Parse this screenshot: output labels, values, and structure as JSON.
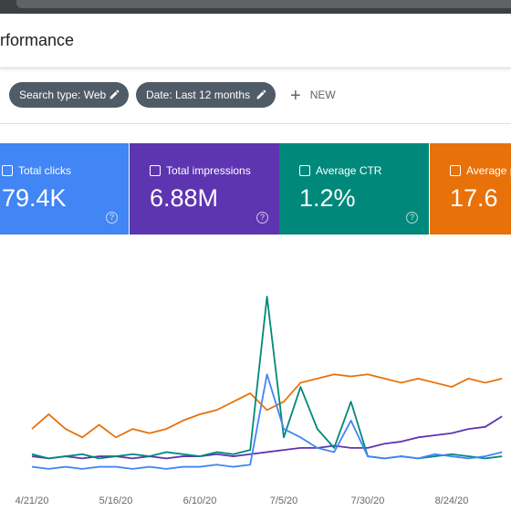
{
  "header": {
    "title": "rformance"
  },
  "filters": [
    "Search type: Web",
    "Date: Last 12 months"
  ],
  "new_button": "NEW",
  "chart_data": {
    "type": "line",
    "categories": [
      "4/21/20",
      null,
      null,
      null,
      null,
      "5/16/20",
      null,
      null,
      null,
      null,
      "6/10/20",
      null,
      null,
      null,
      null,
      "7/5/20",
      null,
      null,
      null,
      null,
      "7/30/20",
      null,
      null,
      null,
      null,
      "8/24/20",
      null,
      null,
      null
    ],
    "series": [
      {
        "name": "Total clicks",
        "total": "79.4K",
        "color": "#4285f4",
        "values": [
          8,
          7,
          8,
          7,
          8,
          8,
          7,
          8,
          7,
          8,
          8,
          9,
          8,
          9,
          52,
          26,
          22,
          17,
          15,
          30,
          13,
          12,
          13,
          12,
          14,
          13,
          12,
          13,
          15
        ]
      },
      {
        "name": "Total impressions",
        "total": "6.88M",
        "color": "#5e35b1",
        "values": [
          13,
          12,
          13,
          12,
          13,
          13,
          12,
          13,
          12,
          13,
          13,
          14,
          13,
          14,
          15,
          16,
          17,
          17,
          18,
          17,
          17,
          19,
          20,
          22,
          23,
          24,
          26,
          27,
          32
        ]
      },
      {
        "name": "Average CTR",
        "total": "1.2%",
        "color": "#00897b",
        "values": [
          14,
          12,
          13,
          14,
          12,
          13,
          14,
          13,
          15,
          14,
          13,
          15,
          14,
          16,
          89,
          22,
          46,
          26,
          17,
          39,
          13,
          12,
          13,
          12,
          13,
          14,
          13,
          12,
          13
        ]
      },
      {
        "name": "Average p",
        "total": "17.6",
        "color": "#e8710a",
        "values": [
          26,
          33,
          26,
          22,
          28,
          22,
          26,
          24,
          26,
          30,
          33,
          35,
          39,
          43,
          35,
          39,
          48,
          50,
          52,
          51,
          52,
          50,
          48,
          50,
          48,
          46,
          50,
          48,
          50
        ]
      }
    ]
  }
}
